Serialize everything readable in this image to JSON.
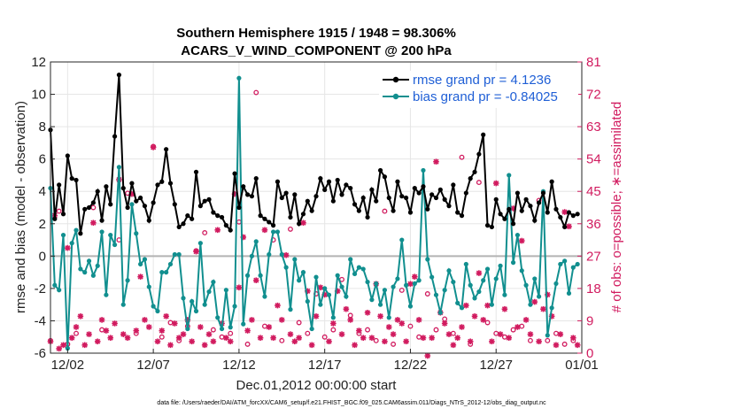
{
  "chart_data": {
    "type": "line",
    "title": [
      "Southern Hemisphere 1915 / 1948 = 98.306%",
      "ACARS_V_WIND_COMPONENT @ 200 hPa"
    ],
    "xlabel": "Dec.01,2012 00:00:00 start",
    "ylabel": "rmse and bias (model - observation)",
    "ylabel_right": "# of obs: o=possible; ∗=assimilated",
    "ylim": [
      -6,
      12
    ],
    "ylim_right": [
      0,
      81
    ],
    "xlim": [
      0,
      124
    ],
    "xticks": [
      {
        "x": 4,
        "label": "12/02"
      },
      {
        "x": 24,
        "label": "12/07"
      },
      {
        "x": 44,
        "label": "12/12"
      },
      {
        "x": 64,
        "label": "12/17"
      },
      {
        "x": 84,
        "label": "12/22"
      },
      {
        "x": 104,
        "label": "12/27"
      },
      {
        "x": 124,
        "label": "01/01"
      }
    ],
    "yticks": [
      -6,
      -4,
      -2,
      0,
      2,
      4,
      6,
      8,
      10,
      12
    ],
    "yticks_right": [
      0,
      9,
      18,
      27,
      36,
      45,
      54,
      63,
      72,
      81
    ],
    "series": [
      {
        "name": "rmse grand pr = 4.1236",
        "color": "#000000",
        "values": [
          7.8,
          2.3,
          4.4,
          2.6,
          6.2,
          4.8,
          4.7,
          1.4,
          2.9,
          3.0,
          3.3,
          4.0,
          2.2,
          4.3,
          3.2,
          7.4,
          11.2,
          4.2,
          3.0,
          4.5,
          3.4,
          3.6,
          3.1,
          2.2,
          3.3,
          4.4,
          4.6,
          6.6,
          4.5,
          3.2,
          1.8,
          2.0,
          2.5,
          2.3,
          5.2,
          3.1,
          3.4,
          3.5,
          2.7,
          2.5,
          2.4,
          1.9,
          1.6,
          5.1,
          3.0,
          4.3,
          3.8,
          3.7,
          4.8,
          2.5,
          2.3,
          2.1,
          1.9,
          4.6,
          3.6,
          3.9,
          2.4,
          3.8,
          2.0,
          2.6,
          3.4,
          2.8,
          3.7,
          4.8,
          4.1,
          4.6,
          3.4,
          4.7,
          3.8,
          4.4,
          4.2,
          3.2,
          2.8,
          3.6,
          2.4,
          4.1,
          3.4,
          5.3,
          4.9,
          3.6,
          2.8,
          4.6,
          3.7,
          3.6,
          2.7,
          4.2,
          3.9,
          4.3,
          2.9,
          3.8,
          3.6,
          4.1,
          3.5,
          3.1,
          4.4,
          2.7,
          2.5,
          3.9,
          4.8,
          5.2,
          6.3,
          7.5,
          1.9,
          1.8,
          3.5,
          2.6,
          2.3,
          2.9,
          2.0,
          3.9,
          2.8,
          3.5,
          3.1,
          2.2,
          3.3,
          3.9,
          2.7,
          4.6,
          2.9,
          2.4,
          1.8,
          2.7,
          2.5,
          2.6
        ],
        "x": [
          0,
          1,
          2,
          3,
          4,
          5,
          6,
          7,
          8,
          9,
          10,
          11,
          12,
          13,
          14,
          15,
          16,
          17,
          18,
          19,
          20,
          21,
          22,
          23,
          24,
          25,
          26,
          27,
          28,
          29,
          30,
          31,
          32,
          33,
          34,
          35,
          36,
          37,
          38,
          39,
          40,
          41,
          42,
          43,
          44,
          45,
          46,
          47,
          48,
          49,
          50,
          51,
          52,
          53,
          54,
          55,
          56,
          57,
          58,
          59,
          60,
          61,
          62,
          63,
          64,
          65,
          66,
          67,
          68,
          69,
          70,
          71,
          72,
          73,
          74,
          75,
          76,
          77,
          78,
          79,
          80,
          81,
          82,
          83,
          84,
          85,
          86,
          87,
          88,
          89,
          90,
          91,
          92,
          93,
          94,
          95,
          96,
          97,
          98,
          99,
          100,
          101,
          102,
          103,
          104,
          105,
          106,
          107,
          108,
          109,
          110,
          111,
          112,
          113,
          114,
          115,
          116,
          117,
          118,
          119,
          120,
          121,
          122,
          123
        ]
      },
      {
        "name": "bias grand pr = -0.84025",
        "color": "#118f8f",
        "values": [
          4.2,
          -1.8,
          -2.1,
          1.3,
          -5.7,
          0.8,
          1.6,
          -0.8,
          -1.0,
          -0.3,
          -1.2,
          -0.6,
          1.5,
          -2.4,
          1.3,
          0.7,
          5.5,
          -3.0,
          -1.5,
          3.2,
          1.4,
          -0.5,
          -0.2,
          -1.9,
          -3.1,
          -3.4,
          -1.0,
          -1.0,
          -0.5,
          0.1,
          0.1,
          -2.6,
          -4.5,
          -2.8,
          -3.4,
          0.8,
          -3.0,
          -2.2,
          -1.6,
          -3.8,
          -4.5,
          -2.1,
          -4.4,
          -3.1,
          11.0,
          -4.2,
          -1.2,
          0.0,
          0.9,
          -1.2,
          -2.5,
          0.1,
          1.5,
          1.5,
          0.1,
          -0.7,
          -3.3,
          -0.2,
          -1.5,
          -1.0,
          -2.8,
          -4.5,
          -1.3,
          -3.0,
          -2.0,
          -2.4,
          -3.8,
          -1.2,
          -1.9,
          -2.5,
          -0.2,
          -1.1,
          -0.7,
          -0.8,
          -1.6,
          -2.7,
          -1.7,
          -3.0,
          -2.1,
          -3.8,
          -1.9,
          -1.4,
          1.0,
          -1.8,
          -3.1,
          -1.7,
          -1.5,
          5.3,
          -0.2,
          -1.3,
          -2.4,
          -3.5,
          -2.1,
          -0.9,
          -1.6,
          -2.9,
          -3.2,
          -0.5,
          -1.8,
          -2.6,
          -2.2,
          -1.5,
          -0.8,
          -3.0,
          -1.4,
          -0.6,
          -2.4,
          5.0,
          -0.4,
          1.3,
          -0.9,
          -1.8,
          -3.0,
          -1.4,
          -2.5,
          4.0,
          -4.9,
          -3.2,
          -1.7,
          -0.5,
          -0.3,
          -2.3,
          -0.7,
          -0.5
        ],
        "x": [
          0,
          1,
          2,
          3,
          4,
          5,
          6,
          7,
          8,
          9,
          10,
          11,
          12,
          13,
          14,
          15,
          16,
          17,
          18,
          19,
          20,
          21,
          22,
          23,
          24,
          25,
          26,
          27,
          28,
          29,
          30,
          31,
          32,
          33,
          34,
          35,
          36,
          37,
          38,
          39,
          40,
          41,
          42,
          43,
          44,
          45,
          46,
          47,
          48,
          49,
          50,
          51,
          52,
          53,
          54,
          55,
          56,
          57,
          58,
          59,
          60,
          61,
          62,
          63,
          64,
          65,
          66,
          67,
          68,
          69,
          70,
          71,
          72,
          73,
          74,
          75,
          76,
          77,
          78,
          79,
          80,
          81,
          82,
          83,
          84,
          85,
          86,
          87,
          88,
          89,
          90,
          91,
          92,
          93,
          94,
          95,
          96,
          97,
          98,
          99,
          100,
          101,
          102,
          103,
          104,
          105,
          106,
          107,
          108,
          109,
          110,
          111,
          112,
          113,
          114,
          115,
          116,
          117,
          118,
          119,
          120,
          121,
          122,
          123
        ]
      },
      {
        "name": "possible",
        "marker": "o",
        "color": "#d11b5f",
        "axis": "right",
        "x": [
          0,
          2,
          4,
          6,
          10,
          12,
          16,
          18,
          20,
          24,
          26,
          28,
          30,
          32,
          34,
          36,
          38,
          40,
          42,
          44,
          46,
          48,
          50,
          52,
          54,
          56,
          58,
          60,
          62,
          64,
          66,
          68,
          70,
          72,
          74,
          76,
          78,
          80,
          82,
          84,
          86,
          88,
          90,
          92,
          94,
          96,
          98,
          100,
          102,
          104,
          106,
          108,
          110,
          112,
          114,
          116,
          118,
          120,
          122
        ],
        "values": [
          3,
          39,
          2,
          5,
          40,
          6,
          31,
          44,
          5,
          57,
          4,
          8,
          3,
          7,
          28,
          33,
          6,
          4,
          5,
          36,
          2,
          72,
          7,
          31,
          3,
          34,
          8,
          5,
          16,
          4,
          6,
          20,
          10,
          5,
          6,
          3,
          39,
          2,
          17,
          7,
          4,
          16,
          6,
          9,
          5,
          54,
          2,
          47,
          8,
          5,
          4,
          6,
          7,
          3,
          42,
          3,
          5,
          2,
          3
        ]
      },
      {
        "name": "assimilated",
        "marker": "*",
        "color": "#d11b5f",
        "axis": "right",
        "x": [
          0,
          1,
          2,
          3,
          4,
          5,
          6,
          7,
          8,
          9,
          10,
          11,
          12,
          13,
          14,
          15,
          16,
          17,
          18,
          19,
          20,
          21,
          22,
          23,
          24,
          25,
          26,
          27,
          28,
          29,
          30,
          31,
          32,
          33,
          34,
          35,
          36,
          37,
          38,
          39,
          40,
          41,
          42,
          43,
          44,
          45,
          46,
          47,
          48,
          49,
          50,
          51,
          52,
          53,
          54,
          55,
          56,
          57,
          58,
          59,
          60,
          61,
          62,
          63,
          64,
          65,
          66,
          67,
          68,
          69,
          70,
          71,
          72,
          73,
          74,
          75,
          76,
          77,
          78,
          79,
          80,
          81,
          82,
          83,
          84,
          85,
          86,
          87,
          88,
          89,
          90,
          91,
          92,
          93,
          94,
          95,
          96,
          97,
          98,
          99,
          100,
          101,
          102,
          103,
          104,
          105,
          106,
          107,
          108,
          109,
          110,
          111,
          112,
          113,
          114,
          115,
          116,
          117,
          118,
          119,
          120,
          121,
          122,
          123
        ],
        "values": [
          4,
          39,
          2,
          3,
          30,
          5,
          8,
          11,
          3,
          6,
          37,
          4,
          10,
          7,
          5,
          9,
          49,
          6,
          5,
          45,
          7,
          22,
          10,
          8,
          58,
          4,
          7,
          11,
          3,
          9,
          5,
          6,
          10,
          4,
          29,
          8,
          3,
          6,
          4,
          35,
          9,
          5,
          4,
          45,
          19,
          33,
          7,
          10,
          21,
          5,
          35,
          8,
          5,
          14,
          10,
          28,
          6,
          4,
          5,
          37,
          18,
          3,
          11,
          19,
          17,
          4,
          9,
          18,
          6,
          13,
          10,
          3,
          7,
          5,
          12,
          5,
          20,
          11,
          4,
          8,
          6,
          10,
          9,
          4,
          20,
          22,
          10,
          5,
          0,
          5,
          54,
          12,
          9,
          6,
          3,
          5,
          8,
          14,
          4,
          11,
          23,
          10,
          14,
          4,
          48,
          6,
          13,
          5,
          41,
          8,
          32,
          10,
          6,
          15,
          4,
          13,
          17,
          11,
          3,
          6,
          40,
          36,
          5,
          3
        ]
      }
    ],
    "footnote": "data file: /Users/raeder/DAI/ATM_forcXX/CAM6_setup/f.e21.FHIST_BGC.f09_025.CAM6assim.011/Diags_NTrS_2012-12/obs_diag_output.nc",
    "grid": true,
    "legend": "top-right"
  }
}
